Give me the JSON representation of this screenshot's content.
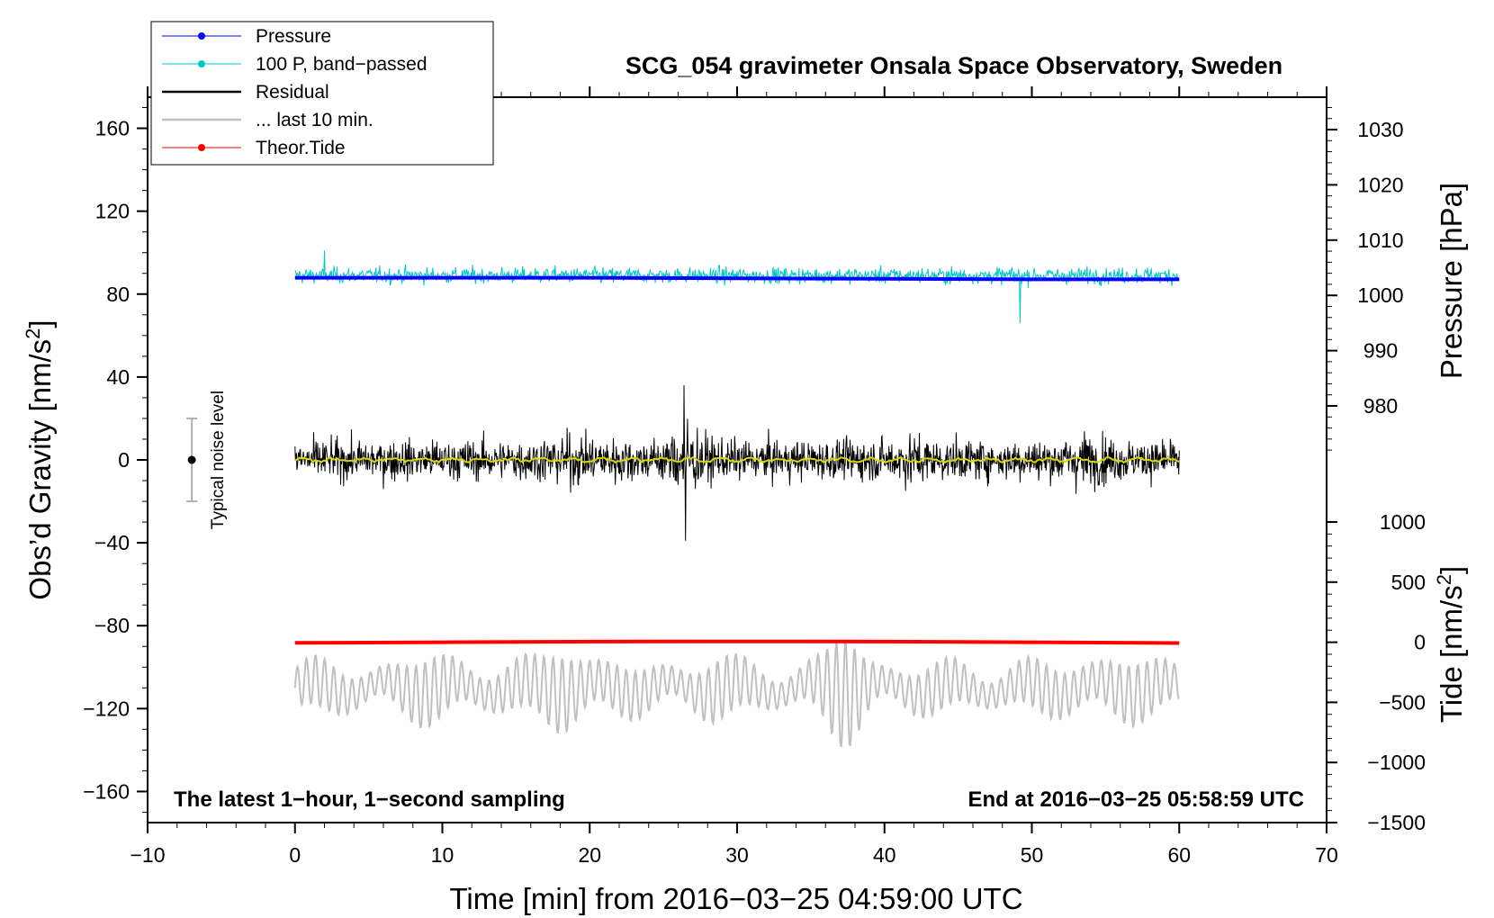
{
  "chart_data": {
    "type": "line",
    "title": "SCG_054 gravimeter Onsala Space Observatory, Sweden",
    "xlabel": "Time [min] from 2016−03−25 04:59:00 UTC",
    "ylabel_left": "Obs’d Gravity [nm/s",
    "ylabel_left_sup": "2",
    "ylabel_left_end": "]",
    "ylabel_right_pressure": "Pressure [hPa]",
    "ylabel_right_tide": "Tide [nm/s",
    "ylabel_right_tide_sup": "2",
    "ylabel_right_tide_end": "]",
    "xlim": [
      -10,
      70
    ],
    "ylim_left": [
      -175,
      175
    ],
    "pressure_axis_range": [
      970,
      1035
    ],
    "tide_axis_range": [
      -1500,
      1000
    ],
    "x_ticks": [
      -10,
      0,
      10,
      20,
      30,
      40,
      50,
      60,
      70
    ],
    "x_tick_labels": [
      "−10",
      "0",
      "10",
      "20",
      "30",
      "40",
      "50",
      "60",
      "70"
    ],
    "left_ticks": [
      160,
      120,
      80,
      40,
      0,
      -40,
      -80,
      -120,
      -160
    ],
    "left_tick_labels": [
      "160",
      "120",
      "80",
      "40",
      "0",
      "−40",
      "−80",
      "−120",
      "−160"
    ],
    "pressure_ticks": [
      1030,
      1020,
      1010,
      1000,
      990,
      980
    ],
    "pressure_tick_labels": [
      "1030",
      "1020",
      "1010",
      "1000",
      "990",
      "980"
    ],
    "tide_ticks": [
      1000,
      500,
      0,
      -500,
      -1000,
      -1500
    ],
    "tide_tick_labels": [
      "1000",
      "500",
      "0",
      "−500",
      "−1000",
      "−1500"
    ],
    "footer_left": "The latest 1−hour, 1−second sampling",
    "footer_right": "End at 2016−03−25 05:58:59 UTC",
    "noise_label": "Typical noise level",
    "noise_bar": {
      "x": -7,
      "center": 0,
      "half_range": 20
    },
    "legend": [
      {
        "label": "Pressure",
        "color": "#0000ff",
        "marker": true
      },
      {
        "label": "100 P, band−passed",
        "color": "#00c8c8",
        "marker": true
      },
      {
        "label": "Residual",
        "color": "#000000",
        "marker": false
      },
      {
        "label": "... last 10 min.",
        "color": "#c0c0c0",
        "marker": false
      },
      {
        "label": "Theor.Tide",
        "color": "#ff0000",
        "marker": true
      }
    ],
    "series": [
      {
        "name": "Pressure",
        "axis": "pressure",
        "color": "#0000ff",
        "x": [
          0,
          10,
          20,
          30,
          40,
          50,
          60
        ],
        "values": [
          1003.2,
          1003.2,
          1003.2,
          1003.1,
          1003.0,
          1002.9,
          1002.9
        ]
      },
      {
        "name": "100 P, band−passed",
        "axis": "left",
        "color": "#00c8c8",
        "x_range": [
          0,
          60
        ],
        "center": 89,
        "amplitude": 6,
        "peak_max": 101,
        "peak_min": 66
      },
      {
        "name": "Residual",
        "axis": "left",
        "color": "#000000",
        "x_range": [
          0,
          60
        ],
        "center": 0,
        "amplitude": 12,
        "peak_max": 36,
        "peak_min": -39
      },
      {
        "name": "Residual smoothed",
        "axis": "left",
        "color": "#d8d800",
        "x_range": [
          0,
          60
        ],
        "center": 0,
        "amplitude": 1.2
      },
      {
        "name": "... last 10 min.",
        "axis": "left",
        "color": "#c0c0c0",
        "x_range": [
          0,
          60
        ],
        "center": -110,
        "amplitude": 12,
        "peak_max": -80,
        "peak_min": -138
      },
      {
        "name": "Theor.Tide",
        "axis": "tide",
        "color": "#ff0000",
        "x": [
          0,
          10,
          20,
          30,
          40,
          50,
          60
        ],
        "values": [
          -5,
          0,
          5,
          7,
          5,
          0,
          -7
        ]
      }
    ]
  }
}
